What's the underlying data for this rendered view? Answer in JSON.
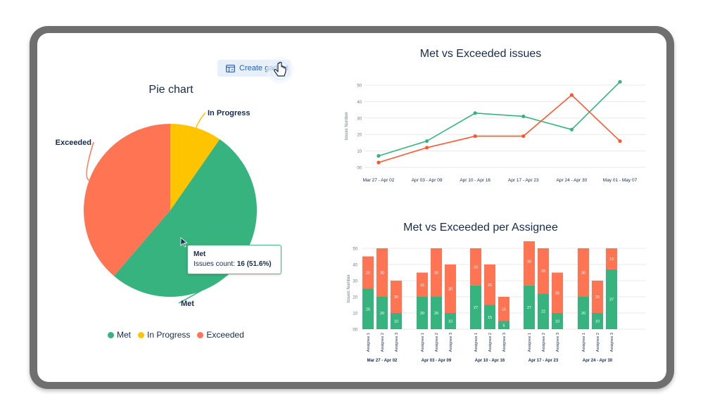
{
  "toolbar": {
    "create_gadget_label": "Create gadget"
  },
  "icons": {
    "gadget": "dashboard-add-icon",
    "cursor": "hand-pointer-icon",
    "pointer": "arrow-cursor-icon"
  },
  "colors": {
    "met": "#36b37e",
    "in_progress": "#ffc400",
    "exceeded": "#ff7452",
    "met_line": "#36b37e",
    "exceeded_line": "#ff5630"
  },
  "tooltip": {
    "title": "Met",
    "label": "Issues count:",
    "value": "16 (51.6%)"
  },
  "chart_data": [
    {
      "type": "pie",
      "title": "Pie chart",
      "slices": [
        {
          "name": "Met",
          "value": 16,
          "color": "#36b37e"
        },
        {
          "name": "In Progress",
          "value": 3,
          "color": "#ffc400"
        },
        {
          "name": "Exceeded",
          "value": 12,
          "color": "#ff7452"
        }
      ],
      "legend": [
        "Met",
        "In Progress",
        "Exceeded"
      ],
      "legend_position": "bottom"
    },
    {
      "type": "line",
      "title": "Met vs Exceeded issues",
      "ylabel": "Issues Number",
      "ylim": [
        0,
        50
      ],
      "yticks": [
        "00",
        "10",
        "20",
        "30",
        "40",
        "50"
      ],
      "categories": [
        "Mar 27 - Apr 02",
        "Apr 03 - Apr 09",
        "Apr 10 - Apr 16",
        "Apr 17 - Apr 23",
        "Apr 24 - Apr 30",
        "May 01 - May 07"
      ],
      "series": [
        {
          "name": "Met",
          "values": [
            7,
            16,
            33,
            31,
            23,
            52
          ]
        },
        {
          "name": "Exceeded",
          "values": [
            3,
            12,
            19,
            19,
            44,
            16
          ]
        }
      ]
    },
    {
      "type": "bar",
      "stacked": true,
      "title": "Met vs Exceeded per Assignee",
      "ylabel": "Issues Number",
      "ylim": [
        0,
        50
      ],
      "yticks": [
        "00",
        "10",
        "20",
        "30",
        "40",
        "50"
      ],
      "groups": [
        "Mar 27 - Apr 02",
        "Apr 03 - Apr 09",
        "Apr 10 - Apr 16",
        "Apr 17 - Apr 23",
        "Apr 24 - Apr 30"
      ],
      "assignees": [
        "Assignee 1",
        "Assignee 2",
        "Assignee 3"
      ],
      "series": [
        {
          "name": "Met",
          "values": [
            [
              25,
              20,
              10
            ],
            [
              20,
              20,
              10
            ],
            [
              27,
              15,
              5
            ],
            [
              27,
              22,
              10
            ],
            [
              20,
              10,
              37
            ]
          ]
        },
        {
          "name": "Exceeded",
          "values": [
            [
              20,
              30,
              20
            ],
            [
              15,
              30,
              30
            ],
            [
              23,
              25,
              15
            ],
            [
              30,
              28,
              25
            ],
            [
              30,
              20,
              13
            ]
          ]
        }
      ]
    }
  ]
}
